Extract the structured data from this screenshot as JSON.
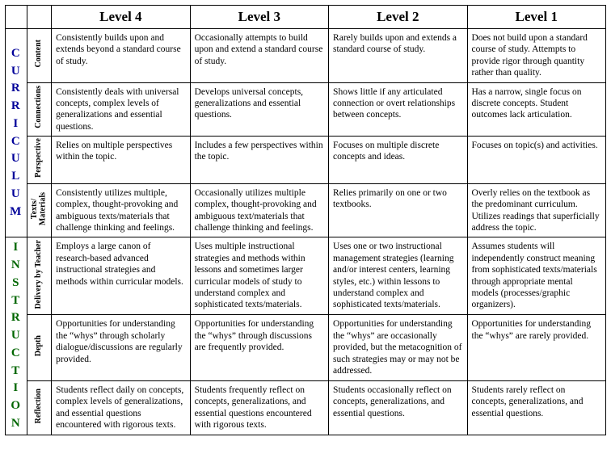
{
  "headers": {
    "l4": "Level 4",
    "l3": "Level 3",
    "l2": "Level 2",
    "l1": "Level 1"
  },
  "sections": [
    {
      "title": "CURRICULUM",
      "color_class": "curriculum",
      "rows": [
        {
          "label": "Content",
          "l4": "Consistently builds upon and extends beyond a standard course of study.",
          "l3": "Occasionally attempts to build upon and extend a standard course of study.",
          "l2": "Rarely builds upon and extends a standard course of study.",
          "l1": "Does not build upon a standard course of study.  Attempts to provide rigor through quantity rather than quality."
        },
        {
          "label": "Connections",
          "l4": "Consistently deals with universal concepts, complex levels of generalizations and essential questions.",
          "l3": "Develops universal concepts, generalizations and essential questions.",
          "l2": "Shows little if any articulated connection or overt relationships between concepts.",
          "l1": "Has a narrow, single focus on discrete concepts.  Student outcomes lack articulation."
        },
        {
          "label": "Perspective",
          "l4": "Relies on multiple perspectives within the topic.",
          "l3": "Includes a few perspectives within the topic.",
          "l2": "Focuses on multiple discrete concepts and ideas.",
          "l1": "Focuses on topic(s) and activities."
        },
        {
          "label": "Texts/\nMaterials",
          "l4": "Consistently utilizes multiple, complex, thought-provoking and ambiguous texts/materials that challenge thinking and feelings.",
          "l3": "Occasionally utilizes multiple complex, thought-provoking and ambiguous text/materials that challenge thinking and feelings.",
          "l2": "Relies primarily on one or two textbooks.",
          "l1": "Overly relies on the textbook as the predominant curriculum.  Utilizes readings that superficially address the topic."
        }
      ]
    },
    {
      "title": "INSTRUCTION",
      "color_class": "instruction",
      "rows": [
        {
          "label": "Delivery by Teacher",
          "l4": "Employs a large canon of research-based advanced instructional strategies and methods within curricular models.",
          "l3": "Uses multiple instructional strategies and methods within lessons and sometimes larger curricular models of study to understand complex and sophisticated texts/materials.",
          "l2": "Uses one or two instructional management strategies (learning and/or interest centers, learning styles, etc.) within lessons to understand complex and sophisticated texts/materials.",
          "l1": "Assumes students will independently construct meaning from sophisticated texts/materials  through appropriate mental models (processes/graphic organizers)."
        },
        {
          "label": "Depth",
          "l4": "Opportunities for understanding the “whys” through scholarly dialogue/discussions are regularly provided.",
          "l3": "Opportunities for understanding the “whys” through discussions are frequently provided.",
          "l2": "Opportunities for understanding the “whys” are occasionally provided, but the metacognition of such strategies may or may not be addressed.",
          "l1": "Opportunities for understanding the “whys” are rarely provided."
        },
        {
          "label": "Reflection",
          "l4": "Students reflect daily on concepts, complex levels of generalizations, and essential questions encountered with rigorous texts.",
          "l3": "Students frequently reflect on concepts, generalizations, and essential questions encountered with rigorous texts.",
          "l2": "Students occasionally reflect on concepts, generalizations, and essential questions.",
          "l1": "Students rarely reflect on concepts, generalizations, and essential questions."
        }
      ]
    }
  ]
}
